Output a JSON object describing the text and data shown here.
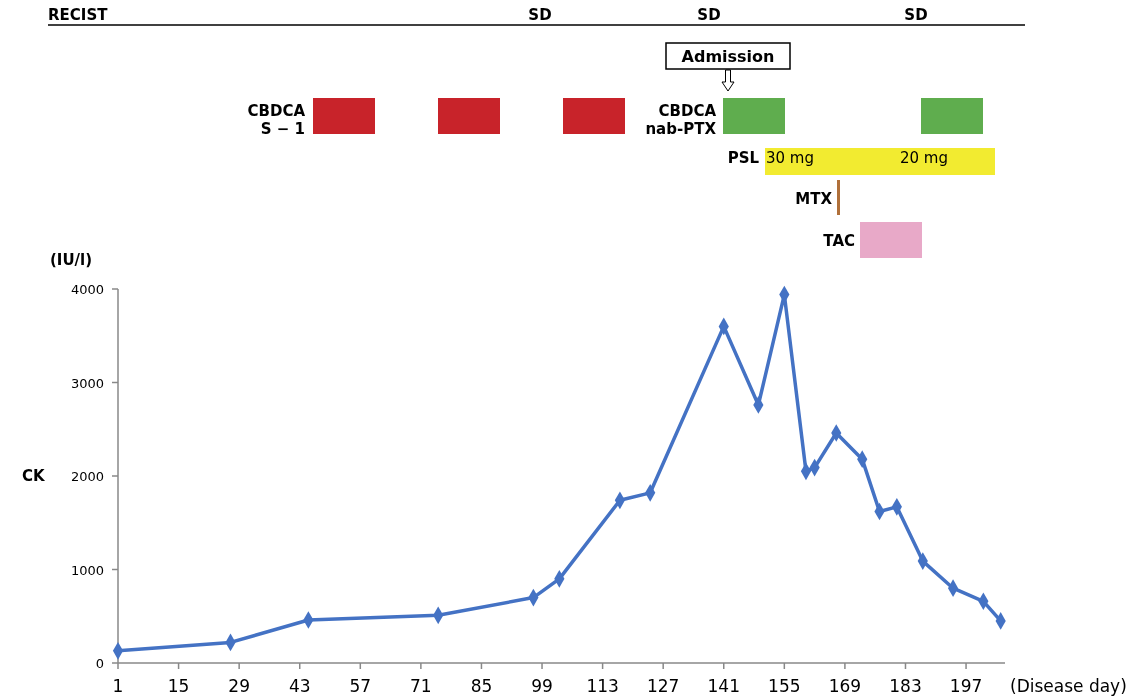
{
  "chart_data": {
    "type": "line",
    "xlabel": "(Disease day)",
    "ylabel": "CK",
    "x": [
      1,
      27,
      45,
      75,
      97,
      103,
      117,
      124,
      141,
      149,
      155,
      160,
      162,
      167,
      173,
      177,
      181,
      187,
      194,
      201,
      205
    ],
    "series": [
      {
        "color": "#4472c4",
        "values": [
          130,
          220,
          460,
          510,
          700,
          900,
          1740,
          1820,
          3600,
          2760,
          3940,
          2050,
          2090,
          2460,
          2180,
          1620,
          1670,
          1090,
          800,
          660,
          450
        ]
      }
    ],
    "marker": "diamond",
    "line_style": "solid",
    "xlim": [
      1,
      206
    ],
    "xticks": [
      1,
      15,
      29,
      43,
      57,
      71,
      85,
      99,
      113,
      127,
      141,
      155,
      169,
      183,
      197
    ],
    "ylim": [
      0,
      4000
    ],
    "yticks": [
      0,
      1000,
      2000,
      3000,
      4000
    ],
    "annotations": [
      "(IU/l)",
      "RECIST",
      "SD",
      "SD",
      "SD",
      "Admission",
      "CBDCA\nS − 1",
      "CBDCA\nnab-PTX",
      "PSL",
      "30 mg",
      "20 mg",
      "MTX",
      "TAC"
    ]
  }
}
